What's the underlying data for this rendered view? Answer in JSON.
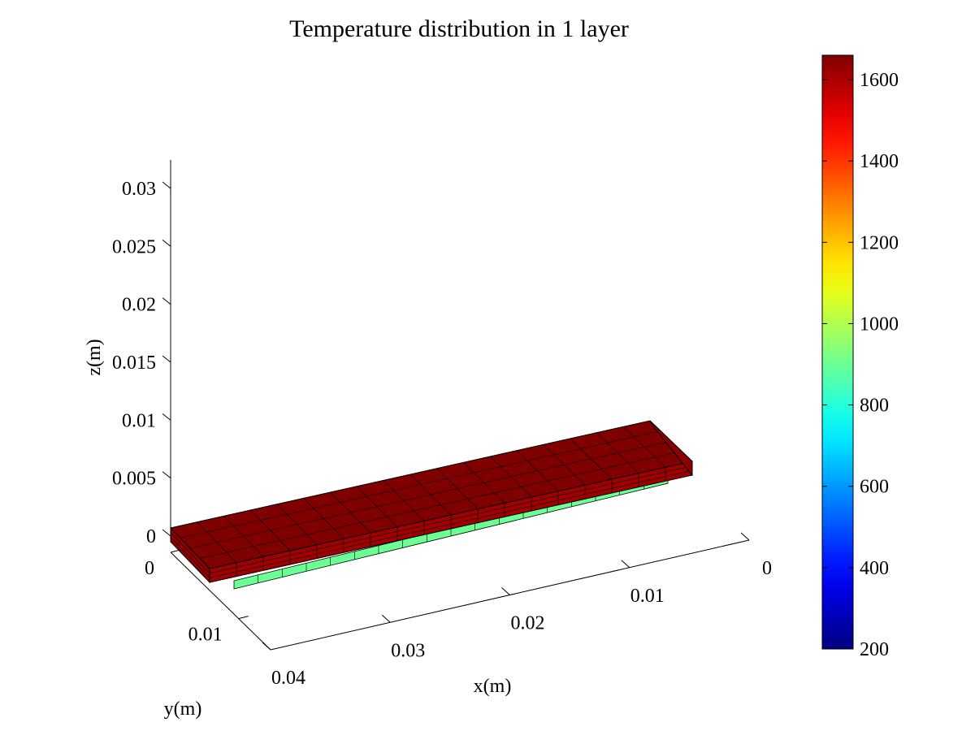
{
  "chart_data": {
    "type": "surface3d",
    "title": "Temperature distribution in 1 layer",
    "xlabel": "x(m)",
    "ylabel": "y(m)",
    "zlabel": "z(m)",
    "x_ticks": [
      0,
      0.01,
      0.02,
      0.03,
      0.04
    ],
    "x_tick_labels": [
      "0",
      "0.01",
      "0.02",
      "0.03",
      "0.04"
    ],
    "y_ticks": [
      0,
      0.01
    ],
    "y_tick_labels": [
      "0",
      "0.01"
    ],
    "z_ticks": [
      0,
      0.005,
      0.01,
      0.015,
      0.02,
      0.025,
      0.03
    ],
    "z_tick_labels": [
      "0",
      "0.005",
      "0.01",
      "0.015",
      "0.02",
      "0.025",
      "0.03"
    ],
    "colorbar": {
      "colormap": "jet",
      "range": [
        200,
        1660
      ],
      "ticks": [
        200,
        400,
        600,
        800,
        1000,
        1200,
        1400,
        1600
      ],
      "tick_labels": [
        "200",
        "400",
        "600",
        "800",
        "1000",
        "1200",
        "1400",
        "1600"
      ]
    },
    "deposited_layer": {
      "x_range": [
        0,
        0.04
      ],
      "top_temperature": 1660,
      "edge_temperature": 1660,
      "substrate_interface_temperature": 900,
      "top_color": "#800000",
      "interface_color": "#80ff80"
    },
    "grid": false
  }
}
